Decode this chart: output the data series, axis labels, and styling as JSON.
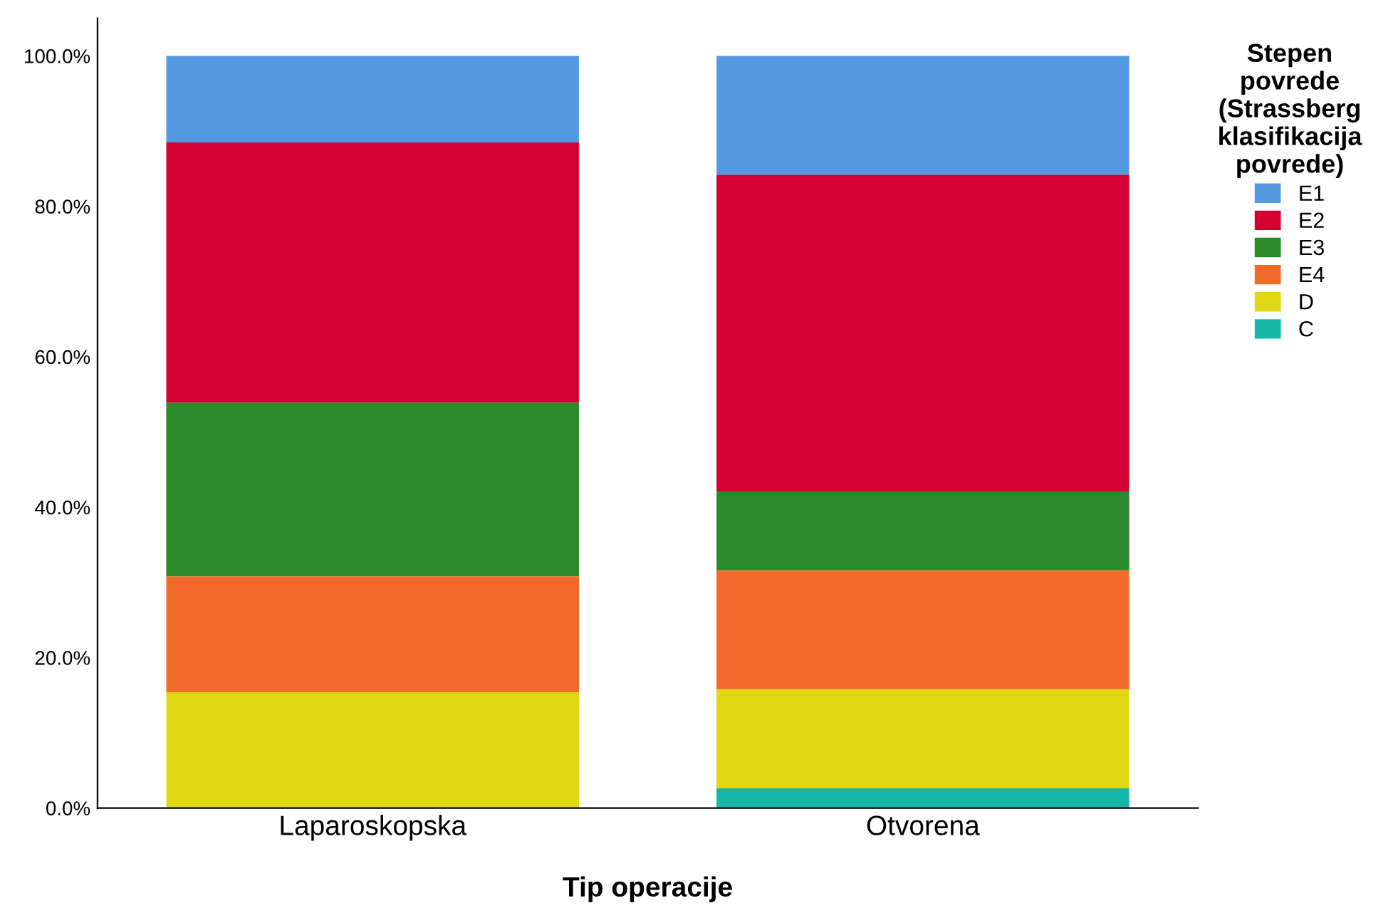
{
  "chart_data": {
    "type": "bar",
    "stacked": true,
    "xlabel": "Tip operacije",
    "legend_title": "Stepen\npovrede\n(Strassberg\nklasifikacija\npovrede)",
    "legend": "right",
    "grid": false,
    "categories": [
      "Laparoskopska",
      "Otvorena"
    ],
    "ylim": [
      0,
      105
    ],
    "yticks": [
      {
        "value": 0,
        "label": "0.0%"
      },
      {
        "value": 20,
        "label": "20.0%"
      },
      {
        "value": 40,
        "label": "40.0%"
      },
      {
        "value": 60,
        "label": "60.0%"
      },
      {
        "value": 80,
        "label": "80.0%"
      },
      {
        "value": 100,
        "label": "100.0%"
      }
    ],
    "series": [
      {
        "name": "C",
        "color": "#16b7a8",
        "values": [
          0,
          2.6
        ]
      },
      {
        "name": "D",
        "color": "#e1d713",
        "values": [
          15.4,
          13.2
        ]
      },
      {
        "name": "E4",
        "color": "#f26b2b",
        "values": [
          15.4,
          15.8
        ]
      },
      {
        "name": "E3",
        "color": "#2a8a2a",
        "values": [
          23.1,
          10.5
        ]
      },
      {
        "name": "E2",
        "color": "#d50032",
        "values": [
          34.6,
          42.1
        ]
      },
      {
        "name": "E1",
        "color": "#5599e3",
        "values": [
          11.5,
          15.8
        ]
      }
    ]
  }
}
